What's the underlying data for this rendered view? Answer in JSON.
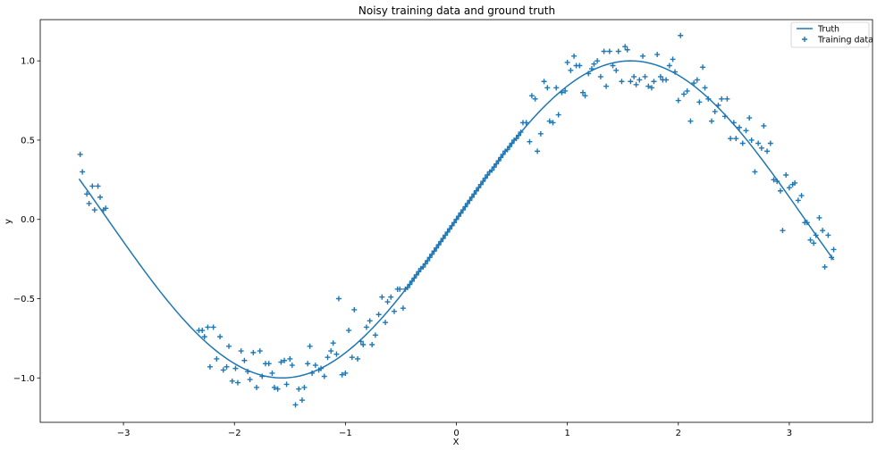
{
  "chart_data": {
    "type": "scatter",
    "title": "Noisy training data and ground truth",
    "xlabel": "X",
    "ylabel": "y",
    "xlim": [
      -3.75,
      3.75
    ],
    "ylim": [
      -1.28,
      1.26
    ],
    "xticks": [
      -3,
      -2,
      -1,
      0,
      1,
      2,
      3
    ],
    "xtick_labels": [
      "−3",
      "−2",
      "−1",
      "0",
      "1",
      "2",
      "3"
    ],
    "yticks": [
      -1.0,
      -0.5,
      0.0,
      0.5,
      1.0
    ],
    "ytick_labels": [
      "−1.0",
      "−0.5",
      "0.0",
      "0.5",
      "1.0"
    ],
    "grid": false,
    "legend": "top-right",
    "color": "#1f77b4",
    "series": [
      {
        "name": "Truth",
        "kind": "line",
        "function": "sin",
        "x_range": [
          -3.4,
          3.4
        ]
      },
      {
        "name": "Training data",
        "kind": "scatter",
        "marker": "plus",
        "points": [
          [
            -3.39,
            0.41
          ],
          [
            -3.37,
            0.3
          ],
          [
            -3.33,
            0.16
          ],
          [
            -3.31,
            0.1
          ],
          [
            -3.28,
            0.21
          ],
          [
            -3.26,
            0.06
          ],
          [
            -3.23,
            0.21
          ],
          [
            -3.21,
            0.14
          ],
          [
            -3.18,
            0.06
          ],
          [
            -3.16,
            0.07
          ],
          [
            -2.32,
            -0.7
          ],
          [
            -2.29,
            -0.7
          ],
          [
            -2.27,
            -0.74
          ],
          [
            -2.24,
            -0.68
          ],
          [
            -2.22,
            -0.93
          ],
          [
            -2.19,
            -0.68
          ],
          [
            -2.16,
            -0.88
          ],
          [
            -2.13,
            -0.74
          ],
          [
            -2.1,
            -0.95
          ],
          [
            -2.07,
            -0.93
          ],
          [
            -2.05,
            -0.8
          ],
          [
            -2.02,
            -1.02
          ],
          [
            -1.99,
            -0.94
          ],
          [
            -1.97,
            -1.03
          ],
          [
            -1.94,
            -0.83
          ],
          [
            -1.91,
            -0.89
          ],
          [
            -1.88,
            -0.96
          ],
          [
            -1.86,
            -1.01
          ],
          [
            -1.83,
            -0.84
          ],
          [
            -1.8,
            -1.06
          ],
          [
            -1.77,
            -0.83
          ],
          [
            -1.75,
            -0.99
          ],
          [
            -1.72,
            -0.91
          ],
          [
            -1.69,
            -0.91
          ],
          [
            -1.66,
            -0.97
          ],
          [
            -1.64,
            -1.06
          ],
          [
            -1.61,
            -1.07
          ],
          [
            -1.58,
            -0.9
          ],
          [
            -1.55,
            -0.89
          ],
          [
            -1.53,
            -1.04
          ],
          [
            -1.5,
            -0.88
          ],
          [
            -1.48,
            -0.92
          ],
          [
            -1.45,
            -1.17
          ],
          [
            -1.42,
            -1.07
          ],
          [
            -1.39,
            -1.14
          ],
          [
            -1.37,
            -1.06
          ],
          [
            -1.34,
            -0.91
          ],
          [
            -1.32,
            -0.8
          ],
          [
            -1.3,
            -0.97
          ],
          [
            -1.27,
            -0.92
          ],
          [
            -1.24,
            -0.95
          ],
          [
            -1.22,
            -0.94
          ],
          [
            -1.19,
            -0.99
          ],
          [
            -1.16,
            -0.87
          ],
          [
            -1.13,
            -0.83
          ],
          [
            -1.11,
            -0.78
          ],
          [
            -1.08,
            -0.85
          ],
          [
            -1.06,
            -0.5
          ],
          [
            -1.03,
            -0.98
          ],
          [
            -1.0,
            -0.97
          ],
          [
            -0.97,
            -0.7
          ],
          [
            -0.94,
            -0.87
          ],
          [
            -0.92,
            -0.57
          ],
          [
            -0.89,
            -0.88
          ],
          [
            -0.86,
            -0.77
          ],
          [
            -0.84,
            -0.79
          ],
          [
            -0.81,
            -0.68
          ],
          [
            -0.78,
            -0.64
          ],
          [
            -0.76,
            -0.79
          ],
          [
            -0.73,
            -0.73
          ],
          [
            -0.7,
            -0.6
          ],
          [
            -0.67,
            -0.49
          ],
          [
            -0.64,
            -0.65
          ],
          [
            -0.62,
            -0.52
          ],
          [
            -0.59,
            -0.49
          ],
          [
            -0.56,
            -0.58
          ],
          [
            -0.53,
            -0.44
          ],
          [
            -0.51,
            -0.44
          ],
          [
            -0.48,
            -0.56
          ],
          [
            -0.46,
            -0.44
          ],
          [
            -0.44,
            -0.43
          ],
          [
            -0.42,
            -0.41
          ],
          [
            -0.4,
            -0.39
          ],
          [
            -0.38,
            -0.37
          ],
          [
            -0.36,
            -0.35
          ],
          [
            -0.34,
            -0.33
          ],
          [
            -0.32,
            -0.31
          ],
          [
            -0.3,
            -0.3
          ],
          [
            -0.28,
            -0.28
          ],
          [
            -0.26,
            -0.26
          ],
          [
            -0.24,
            -0.24
          ],
          [
            -0.22,
            -0.22
          ],
          [
            -0.2,
            -0.2
          ],
          [
            -0.18,
            -0.18
          ],
          [
            -0.16,
            -0.16
          ],
          [
            -0.14,
            -0.14
          ],
          [
            -0.12,
            -0.12
          ],
          [
            -0.1,
            -0.1
          ],
          [
            -0.08,
            -0.08
          ],
          [
            -0.06,
            -0.06
          ],
          [
            -0.04,
            -0.04
          ],
          [
            -0.02,
            -0.02
          ],
          [
            0.0,
            0.0
          ],
          [
            0.02,
            0.02
          ],
          [
            0.04,
            0.04
          ],
          [
            0.06,
            0.06
          ],
          [
            0.08,
            0.08
          ],
          [
            0.1,
            0.1
          ],
          [
            0.12,
            0.12
          ],
          [
            0.14,
            0.14
          ],
          [
            0.16,
            0.16
          ],
          [
            0.18,
            0.18
          ],
          [
            0.2,
            0.2
          ],
          [
            0.22,
            0.22
          ],
          [
            0.24,
            0.24
          ],
          [
            0.26,
            0.26
          ],
          [
            0.28,
            0.28
          ],
          [
            0.3,
            0.3
          ],
          [
            0.32,
            0.31
          ],
          [
            0.34,
            0.33
          ],
          [
            0.36,
            0.35
          ],
          [
            0.38,
            0.37
          ],
          [
            0.4,
            0.39
          ],
          [
            0.42,
            0.41
          ],
          [
            0.44,
            0.43
          ],
          [
            0.46,
            0.44
          ],
          [
            0.48,
            0.46
          ],
          [
            0.5,
            0.48
          ],
          [
            0.52,
            0.5
          ],
          [
            0.54,
            0.51
          ],
          [
            0.56,
            0.53
          ],
          [
            0.58,
            0.55
          ],
          [
            0.6,
            0.61
          ],
          [
            0.63,
            0.61
          ],
          [
            0.66,
            0.49
          ],
          [
            0.68,
            0.78
          ],
          [
            0.71,
            0.76
          ],
          [
            0.73,
            0.43
          ],
          [
            0.76,
            0.54
          ],
          [
            0.79,
            0.87
          ],
          [
            0.82,
            0.83
          ],
          [
            0.84,
            0.62
          ],
          [
            0.87,
            0.61
          ],
          [
            0.9,
            0.83
          ],
          [
            0.92,
            0.66
          ],
          [
            0.95,
            0.8
          ],
          [
            0.98,
            0.81
          ],
          [
            1.0,
            0.99
          ],
          [
            1.03,
            0.94
          ],
          [
            1.06,
            1.03
          ],
          [
            1.08,
            0.97
          ],
          [
            1.11,
            0.97
          ],
          [
            1.14,
            0.8
          ],
          [
            1.16,
            0.78
          ],
          [
            1.19,
            0.92
          ],
          [
            1.22,
            0.95
          ],
          [
            1.24,
            0.98
          ],
          [
            1.27,
            1.0
          ],
          [
            1.3,
            0.9
          ],
          [
            1.33,
            1.06
          ],
          [
            1.35,
            0.84
          ],
          [
            1.38,
            1.06
          ],
          [
            1.41,
            0.97
          ],
          [
            1.44,
            0.94
          ],
          [
            1.46,
            1.06
          ],
          [
            1.49,
            0.87
          ],
          [
            1.52,
            1.09
          ],
          [
            1.54,
            1.07
          ],
          [
            1.57,
            0.87
          ],
          [
            1.6,
            0.9
          ],
          [
            1.62,
            0.85
          ],
          [
            1.65,
            0.88
          ],
          [
            1.68,
            1.03
          ],
          [
            1.7,
            0.9
          ],
          [
            1.73,
            0.84
          ],
          [
            1.76,
            0.83
          ],
          [
            1.78,
            0.87
          ],
          [
            1.81,
            1.04
          ],
          [
            1.84,
            0.9
          ],
          [
            1.86,
            0.88
          ],
          [
            1.89,
            0.88
          ],
          [
            1.92,
            0.97
          ],
          [
            1.95,
            1.01
          ],
          [
            1.97,
            0.93
          ],
          [
            2.0,
            0.75
          ],
          [
            2.02,
            1.16
          ],
          [
            2.05,
            0.79
          ],
          [
            2.08,
            0.81
          ],
          [
            2.11,
            0.62
          ],
          [
            2.14,
            0.86
          ],
          [
            2.17,
            0.88
          ],
          [
            2.19,
            0.74
          ],
          [
            2.22,
            0.96
          ],
          [
            2.24,
            0.83
          ],
          [
            2.27,
            0.76
          ],
          [
            2.3,
            0.62
          ],
          [
            2.33,
            0.68
          ],
          [
            2.36,
            0.72
          ],
          [
            2.39,
            0.76
          ],
          [
            2.42,
            0.65
          ],
          [
            2.44,
            0.76
          ],
          [
            2.47,
            0.51
          ],
          [
            2.5,
            0.61
          ],
          [
            2.52,
            0.51
          ],
          [
            2.55,
            0.58
          ],
          [
            2.58,
            0.48
          ],
          [
            2.61,
            0.56
          ],
          [
            2.64,
            0.64
          ],
          [
            2.66,
            0.5
          ],
          [
            2.69,
            0.3
          ],
          [
            2.72,
            0.48
          ],
          [
            2.75,
            0.45
          ],
          [
            2.77,
            0.59
          ],
          [
            2.8,
            0.43
          ],
          [
            2.83,
            0.48
          ],
          [
            2.86,
            0.25
          ],
          [
            2.89,
            0.24
          ],
          [
            2.92,
            0.18
          ],
          [
            2.94,
            -0.07
          ],
          [
            2.97,
            0.28
          ],
          [
            3.0,
            0.2
          ],
          [
            3.03,
            0.22
          ],
          [
            3.05,
            0.23
          ],
          [
            3.08,
            0.12
          ],
          [
            3.11,
            0.15
          ],
          [
            3.14,
            -0.02
          ],
          [
            3.16,
            -0.02
          ],
          [
            3.19,
            -0.13
          ],
          [
            3.22,
            -0.15
          ],
          [
            3.24,
            -0.1
          ],
          [
            3.27,
            0.01
          ],
          [
            3.3,
            -0.07
          ],
          [
            3.32,
            -0.3
          ],
          [
            3.35,
            -0.1
          ],
          [
            3.38,
            -0.24
          ],
          [
            3.4,
            -0.19
          ]
        ]
      }
    ]
  }
}
